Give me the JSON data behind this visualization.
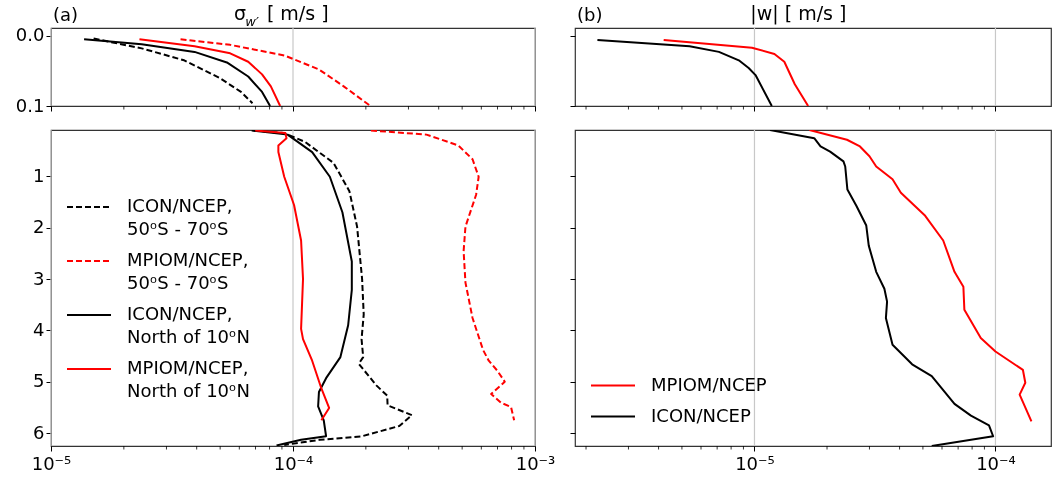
{
  "chart_data": [
    {
      "type": "line",
      "title": "σ$_{w′}$ [ m/s ]",
      "annotations": [
        "(a)"
      ],
      "log": "x",
      "grid": "x",
      "tick_labels": "y",
      "xlim": [
        1e-05,
        0.001
      ],
      "ylim": [
        0.1,
        -0.011
      ],
      "xticks": [
        1e-05,
        {
          "value": 2e-05,
          "label": null
        },
        {
          "value": 3e-05,
          "label": null
        },
        {
          "value": 4e-05,
          "label": null
        },
        {
          "value": 5e-05,
          "label": null
        },
        {
          "value": 6e-05,
          "label": null
        },
        {
          "value": 7e-05,
          "label": null
        },
        {
          "value": 8e-05,
          "label": null
        },
        {
          "value": 9e-05,
          "label": null
        },
        0.0001,
        {
          "value": 0.0002,
          "label": null
        },
        {
          "value": 0.0003,
          "label": null
        },
        {
          "value": 0.0004,
          "label": null
        },
        {
          "value": 0.0005,
          "label": null
        },
        {
          "value": 0.0006,
          "label": null
        },
        {
          "value": 0.0007,
          "label": null
        },
        {
          "value": 0.0008,
          "label": null
        },
        {
          "value": 0.0009,
          "label": null
        },
        0.001
      ],
      "yticks": [
        {
          "value": 0,
          "label": "0.0"
        },
        0.1
      ],
      "series": [
        {
          "color": "#000000",
          "line_style": "dashed",
          "x": [
            1.5e-05,
            2.37e-05,
            3.55e-05,
            4.97e-05,
            6.1e-05,
            6.8e-05
          ],
          "values": [
            0.004,
            0.018,
            0.035,
            0.06,
            0.08,
            0.096
          ]
        },
        {
          "color": "#ff0000",
          "line_style": "dashed",
          "x": [
            3.43e-05,
            5.5e-05,
            9.2e-05,
            0.000128,
            0.000162,
            0.000209
          ],
          "values": [
            0.005,
            0.013,
            0.028,
            0.048,
            0.072,
            0.1
          ]
        },
        {
          "color": "#000000",
          "line_style": "solid",
          "x": [
            1.37e-05,
            2.37e-05,
            3.92e-05,
            5.33e-05,
            6.53e-05,
            7.45e-05,
            8.04e-05
          ],
          "values": [
            0.005,
            0.012,
            0.023,
            0.038,
            0.058,
            0.08,
            0.1
          ]
        },
        {
          "color": "#ff0000",
          "line_style": "solid",
          "x": [
            2.32e-05,
            3.92e-05,
            5.5e-05,
            6.53e-05,
            7.45e-05,
            8.1e-05,
            8.85e-05
          ],
          "values": [
            0.005,
            0.015,
            0.025,
            0.037,
            0.055,
            0.072,
            0.1
          ]
        }
      ]
    },
    {
      "type": "line",
      "title": "|w| [ m/s ]",
      "annotations": [
        "(b)"
      ],
      "log": "x",
      "grid": "x",
      "tick_labels": false,
      "xlim": [
        1.8e-06,
        0.00017
      ],
      "ylim": [
        0.1,
        -0.011
      ],
      "xticks": [
        {
          "value": 2e-06,
          "label": null
        },
        {
          "value": 3e-06,
          "label": null
        },
        {
          "value": 4e-06,
          "label": null
        },
        {
          "value": 5e-06,
          "label": null
        },
        {
          "value": 6e-06,
          "label": null
        },
        {
          "value": 7e-06,
          "label": null
        },
        {
          "value": 8e-06,
          "label": null
        },
        {
          "value": 9e-06,
          "label": null
        },
        1e-05,
        {
          "value": 2e-05,
          "label": null
        },
        {
          "value": 3e-05,
          "label": null
        },
        {
          "value": 4e-05,
          "label": null
        },
        {
          "value": 5e-05,
          "label": null
        },
        {
          "value": 6e-05,
          "label": null
        },
        {
          "value": 7e-05,
          "label": null
        },
        {
          "value": 8e-05,
          "label": null
        },
        {
          "value": 9e-05,
          "label": null
        },
        0.0001
      ],
      "yticks": [
        0,
        0.1
      ],
      "series": [
        {
          "color": "#ff0000",
          "line_style": "solid",
          "x": [
            4.2e-06,
            9.76e-06,
            1.21e-05,
            1.33e-05,
            1.47e-05,
            1.67e-05
          ],
          "values": [
            0.006,
            0.017,
            0.026,
            0.037,
            0.069,
            0.1
          ]
        },
        {
          "color": "#000000",
          "line_style": "solid",
          "x": [
            2.23e-06,
            5.38e-06,
            7.12e-06,
            8.61e-06,
            9.46e-06,
            1.01e-05,
            1.18e-05
          ],
          "values": [
            0.006,
            0.015,
            0.023,
            0.035,
            0.046,
            0.056,
            0.1
          ]
        }
      ]
    },
    {
      "type": "line",
      "log": "x",
      "grid": "x",
      "legend": "left",
      "xlim": [
        1e-05,
        0.001
      ],
      "ylim": [
        6.25,
        0.1
      ],
      "xticks": [
        {
          "value": 1e-05,
          "label": "10⁻⁵"
        },
        {
          "value": 2e-05,
          "label": null
        },
        {
          "value": 3e-05,
          "label": null
        },
        {
          "value": 4e-05,
          "label": null
        },
        {
          "value": 5e-05,
          "label": null
        },
        {
          "value": 6e-05,
          "label": null
        },
        {
          "value": 7e-05,
          "label": null
        },
        {
          "value": 8e-05,
          "label": null
        },
        {
          "value": 9e-05,
          "label": null
        },
        {
          "value": 0.0001,
          "label": "10⁻⁴"
        },
        {
          "value": 0.0002,
          "label": null
        },
        {
          "value": 0.0003,
          "label": null
        },
        {
          "value": 0.0004,
          "label": null
        },
        {
          "value": 0.0005,
          "label": null
        },
        {
          "value": 0.0006,
          "label": null
        },
        {
          "value": 0.0007,
          "label": null
        },
        {
          "value": 0.0008,
          "label": null
        },
        {
          "value": 0.0009,
          "label": null
        },
        {
          "value": 0.001,
          "label": "10⁻³"
        }
      ],
      "yticks": [
        1,
        2,
        3,
        4,
        5,
        6
      ],
      "series": [
        {
          "name": "ICON/NCEP,\n50ᵒS - 70ᵒS",
          "color": "#000000",
          "line_style": "dashed",
          "x": [
            6.87e-05,
            9.16e-05,
            0.000112,
            0.000147,
            0.000171,
            0.000184,
            0.000193,
            0.000196,
            0.000192,
            0.000195,
            0.000187,
            0.000221,
            0.000245,
            0.000246,
            0.00031,
            0.000275,
            0.000193,
            0.000129,
            9.2e-05
          ],
          "values": [
            0.11,
            0.16,
            0.33,
            0.74,
            1.29,
            1.98,
            3.0,
            3.69,
            4.17,
            4.52,
            4.65,
            5.07,
            5.27,
            5.46,
            5.65,
            5.86,
            6.06,
            6.13,
            6.23
          ]
        },
        {
          "name": "MPIOM/NCEP,\n50ᵒS - 70ᵒS",
          "color": "#ff0000",
          "line_style": "dashed",
          "x": [
            0.00021,
            0.000356,
            0.000482,
            0.000552,
            0.000585,
            0.000571,
            0.000516,
            0.000507,
            0.000516,
            0.000552,
            0.00061,
            0.000644,
            0.0007,
            0.00075,
            0.000659,
            0.000725,
            0.000796,
            0.00082
          ],
          "values": [
            0.11,
            0.19,
            0.4,
            0.67,
            1.01,
            1.36,
            1.98,
            2.46,
            3.07,
            3.76,
            4.38,
            4.59,
            4.79,
            5.0,
            5.24,
            5.41,
            5.49,
            5.75
          ]
        },
        {
          "name": "ICON/NCEP,\nNorth of 10ᵒN",
          "color": "#000000",
          "line_style": "solid",
          "x": [
            6.75e-05,
            9.5e-05,
            0.00012,
            0.000142,
            0.00016,
            0.000175,
            0.000175,
            0.000169,
            0.000157,
            0.000137,
            0.000128,
            0.000127,
            0.000134,
            0.000137,
            0.000108,
            8.55e-05
          ],
          "values": [
            0.11,
            0.19,
            0.53,
            1.01,
            1.7,
            2.66,
            3.21,
            3.9,
            4.52,
            4.93,
            5.2,
            5.48,
            5.75,
            6.06,
            6.13,
            6.24
          ]
        },
        {
          "name": "MPIOM/NCEP,\nNorth of 10ᵒN",
          "color": "#ff0000",
          "line_style": "solid",
          "x": [
            6.98e-05,
            9.3e-05,
            9.4e-05,
            8.7e-05,
            8.7e-05,
            9.2e-05,
            0.000101,
            0.000108,
            0.00011,
            0.000108,
            0.00011,
            0.00012,
            0.000131,
            0.000141,
            0.000131
          ],
          "values": [
            0.11,
            0.16,
            0.26,
            0.4,
            0.53,
            1.01,
            1.56,
            2.25,
            3.0,
            3.97,
            4.17,
            4.59,
            5.13,
            5.51,
            5.75
          ]
        }
      ]
    },
    {
      "type": "line",
      "log": "x",
      "grid": "x",
      "legend": "bottom left",
      "tick_labels": "x",
      "xlim": [
        1.8e-06,
        0.00017
      ],
      "ylim": [
        6.25,
        0.1
      ],
      "xticks": [
        {
          "value": 2e-06,
          "label": null
        },
        {
          "value": 3e-06,
          "label": null
        },
        {
          "value": 4e-06,
          "label": null
        },
        {
          "value": 5e-06,
          "label": null
        },
        {
          "value": 6e-06,
          "label": null
        },
        {
          "value": 7e-06,
          "label": null
        },
        {
          "value": 8e-06,
          "label": null
        },
        {
          "value": 9e-06,
          "label": null
        },
        {
          "value": 1e-05,
          "label": "10⁻⁵"
        },
        {
          "value": 2e-05,
          "label": null
        },
        {
          "value": 3e-05,
          "label": null
        },
        {
          "value": 4e-05,
          "label": null
        },
        {
          "value": 5e-05,
          "label": null
        },
        {
          "value": 6e-05,
          "label": null
        },
        {
          "value": 7e-05,
          "label": null
        },
        {
          "value": 8e-05,
          "label": null
        },
        {
          "value": 9e-05,
          "label": null
        },
        {
          "value": 0.0001,
          "label": "10⁻⁴"
        }
      ],
      "yticks": [
        1,
        2,
        3,
        4,
        5,
        6
      ],
      "series": [
        {
          "name": "MPIOM/NCEP",
          "color": "#ff0000",
          "line_style": "solid",
          "x": [
            1.69e-05,
            2.42e-05,
            2.74e-05,
            3e-05,
            3.2e-05,
            3.74e-05,
            4.05e-05,
            5.11e-05,
            6.07e-05,
            6.76e-05,
            7.36e-05,
            7.43e-05,
            8.69e-05,
            0.0001,
            0.00013,
            0.000133,
            0.000126,
            0.000141
          ],
          "values": [
            0.1,
            0.29,
            0.42,
            0.61,
            0.81,
            1.06,
            1.32,
            1.77,
            2.25,
            2.86,
            3.15,
            3.6,
            4.15,
            4.41,
            4.77,
            5.02,
            5.25,
            5.77
          ]
        },
        {
          "name": "ICON/NCEP",
          "color": "#000000",
          "line_style": "solid",
          "x": [
            1.16e-05,
            1.77e-05,
            1.88e-05,
            2.06e-05,
            2.34e-05,
            2.38e-05,
            2.43e-05,
            2.65e-05,
            2.91e-05,
            2.98e-05,
            3.2e-05,
            3.46e-05,
            3.55e-05,
            3.51e-05,
            3.74e-05,
            4.51e-05,
            5.44e-05,
            6.76e-05,
            7.91e-05,
            9.4e-05,
            9.78e-05,
            5.44e-05
          ],
          "values": [
            0.1,
            0.26,
            0.42,
            0.52,
            0.71,
            0.81,
            1.26,
            1.58,
            1.96,
            2.35,
            2.86,
            3.19,
            3.44,
            3.76,
            4.28,
            4.66,
            4.89,
            5.43,
            5.66,
            5.85,
            6.06,
            6.25
          ]
        }
      ]
    }
  ]
}
